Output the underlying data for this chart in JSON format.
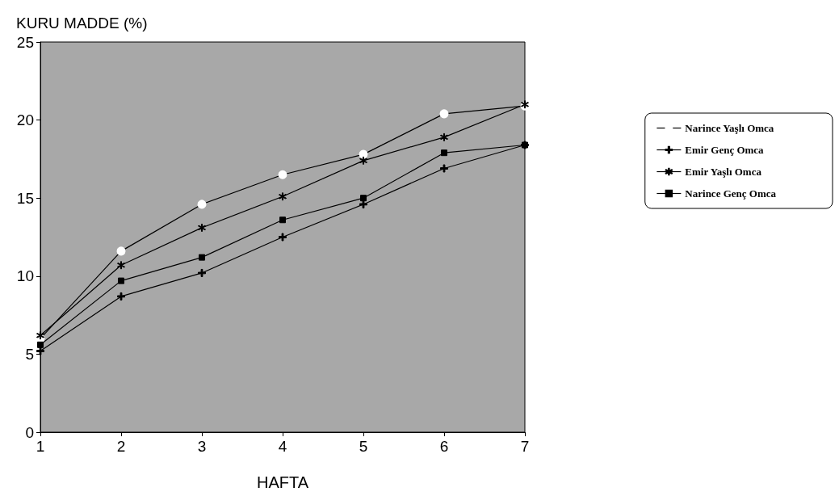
{
  "chart_data": {
    "type": "line",
    "ylabel": "KURU MADDE (%)",
    "xlabel": "HAFTA",
    "x": [
      1,
      2,
      3,
      4,
      5,
      6,
      7
    ],
    "xlim": [
      1,
      7
    ],
    "xticks": [
      1,
      2,
      3,
      4,
      5,
      6,
      7
    ],
    "ylim": [
      0,
      25
    ],
    "yticks": [
      0,
      5,
      10,
      15,
      20,
      25
    ],
    "series": [
      {
        "name": "Narince Yaşlı Omca",
        "color": "#000000",
        "marker": "circle",
        "values": [
          6.0,
          11.6,
          14.6,
          16.5,
          17.8,
          20.4,
          20.9
        ]
      },
      {
        "name": "Emir Genç Omca",
        "color": "#000000",
        "marker": "cross",
        "values": [
          5.2,
          8.7,
          10.2,
          12.5,
          14.6,
          16.9,
          18.4
        ]
      },
      {
        "name": "Emir Yaşlı Omca",
        "color": "#000000",
        "marker": "star",
        "values": [
          6.2,
          10.7,
          13.1,
          15.1,
          17.4,
          18.9,
          21.0
        ]
      },
      {
        "name": "Narince Genç Omca",
        "color": "#000000",
        "marker": "square",
        "values": [
          5.6,
          9.7,
          11.2,
          13.6,
          15.0,
          17.9,
          18.4
        ]
      }
    ],
    "legend": "right",
    "grid": false,
    "line_style": "solid"
  }
}
